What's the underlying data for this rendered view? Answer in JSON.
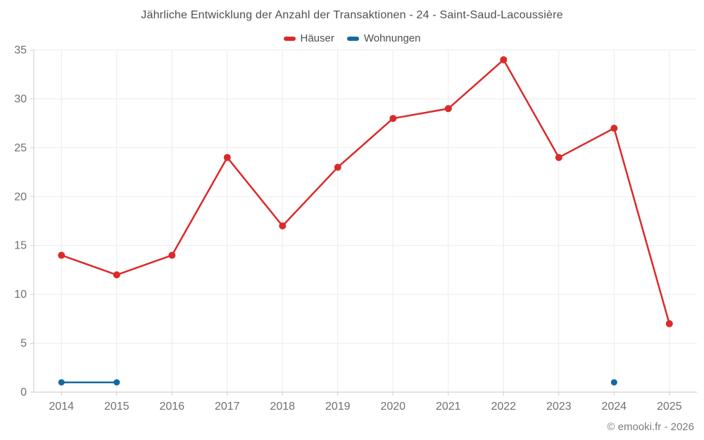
{
  "chart_data": {
    "type": "line",
    "title": "Jährliche Entwicklung der Anzahl der Transaktionen - 24 - Saint-Saud-Lacoussière",
    "categories": [
      "2014",
      "2015",
      "2016",
      "2017",
      "2018",
      "2019",
      "2020",
      "2021",
      "2022",
      "2023",
      "2024",
      "2025"
    ],
    "series": [
      {
        "id": "haeuser",
        "name": "Häuser",
        "color": "#db2a2a",
        "values": [
          14,
          12,
          14,
          24,
          17,
          23,
          28,
          29,
          34,
          24,
          27,
          7
        ]
      },
      {
        "id": "wohnungen",
        "name": "Wohnungen",
        "color": "#1569a0",
        "values": [
          1,
          1,
          null,
          null,
          null,
          null,
          null,
          null,
          null,
          null,
          1,
          null
        ]
      }
    ],
    "xlabel": "",
    "ylabel": "",
    "ylim": [
      0,
      35
    ],
    "ytick_step": 5,
    "grid": true,
    "legend_position": "top"
  },
  "footer": {
    "copyright": "© emooki.fr - 2026"
  }
}
